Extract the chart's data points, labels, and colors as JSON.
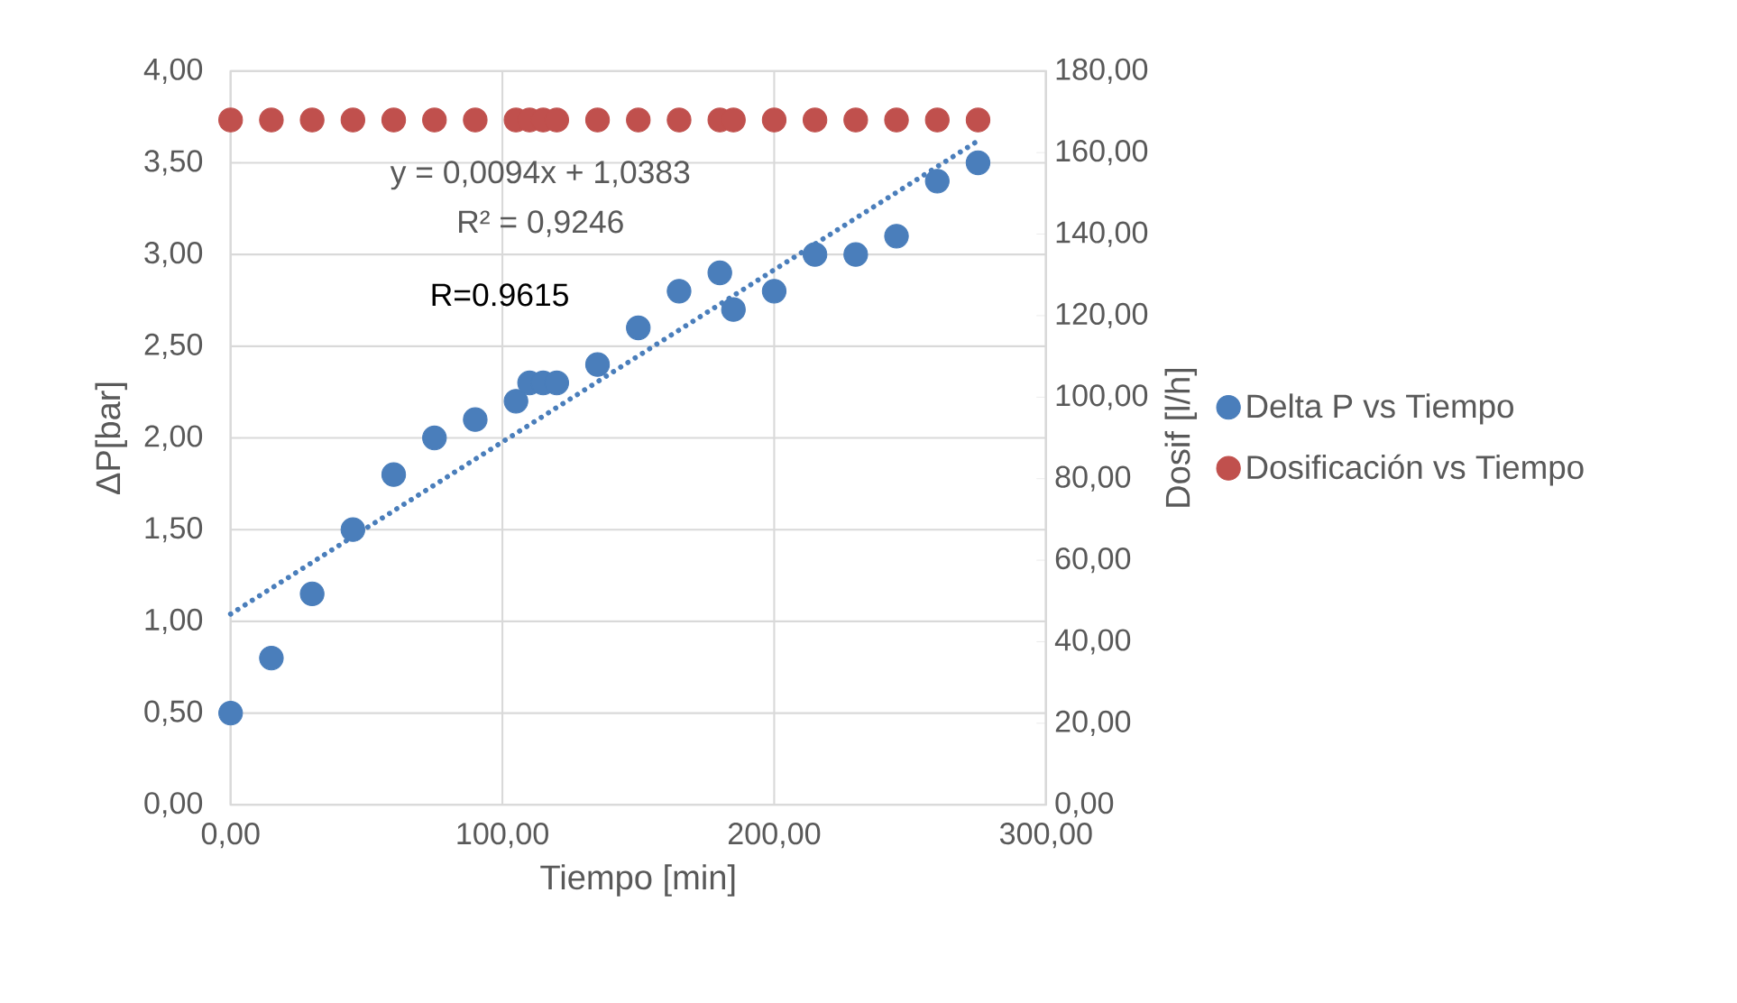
{
  "chart_data": {
    "type": "scatter",
    "xlabel": "Tiempo [min]",
    "ylabel": "ΔP[bar]",
    "y2label": "Dosif [l/h]",
    "annotations": [
      "y = 0,0094x + 1,0383",
      "R² = 0,9246",
      "R=0.9615"
    ],
    "xlim": [
      0,
      300
    ],
    "xticks": [
      {
        "value": 0,
        "label": "0,00"
      },
      {
        "value": 100,
        "label": "100,00"
      },
      {
        "value": 200,
        "label": "200,00"
      },
      {
        "value": 300,
        "label": "300,00"
      }
    ],
    "ylim": [
      0,
      4
    ],
    "yticks": [
      {
        "value": 0,
        "label": "0,00"
      },
      {
        "value": 0.5,
        "label": "0,50"
      },
      {
        "value": 1,
        "label": "1,00"
      },
      {
        "value": 1.5,
        "label": "1,50"
      },
      {
        "value": 2,
        "label": "2,00"
      },
      {
        "value": 2.5,
        "label": "2,50"
      },
      {
        "value": 3,
        "label": "3,00"
      },
      {
        "value": 3.5,
        "label": "3,50"
      },
      {
        "value": 4,
        "label": "4,00"
      }
    ],
    "y2lim": [
      0,
      180
    ],
    "y2ticks": [
      {
        "value": 0,
        "label": "0,00"
      },
      {
        "value": 20,
        "label": "20,00"
      },
      {
        "value": 40,
        "label": "40,00"
      },
      {
        "value": 60,
        "label": "60,00"
      },
      {
        "value": 80,
        "label": "80,00"
      },
      {
        "value": 100,
        "label": "100,00"
      },
      {
        "value": 120,
        "label": "120,00"
      },
      {
        "value": 140,
        "label": "140,00"
      },
      {
        "value": 160,
        "label": "160,00"
      },
      {
        "value": 180,
        "label": "180,00"
      }
    ],
    "grid": true,
    "legend": "right",
    "marker": "circle",
    "series": [
      {
        "name": "Delta P vs Tiempo",
        "type": "scatter",
        "color": "#4a7ebb",
        "x": [
          0,
          15,
          30,
          45,
          60,
          75,
          90,
          105,
          110,
          115,
          120,
          135,
          150,
          165,
          180,
          185,
          200,
          215,
          230,
          245,
          260,
          275
        ],
        "values": [
          0.5,
          0.8,
          1.15,
          1.5,
          1.8,
          2.0,
          2.1,
          2.2,
          2.3,
          2.3,
          2.3,
          2.4,
          2.6,
          2.8,
          2.9,
          2.7,
          2.8,
          3.0,
          3.0,
          3.1,
          3.4,
          3.5
        ]
      },
      {
        "name": "Dosificación vs Tiempo",
        "type": "scatter",
        "axis": "y2",
        "color": "#c0504d",
        "x": [
          0,
          15,
          30,
          45,
          60,
          75,
          90,
          105,
          110,
          115,
          120,
          135,
          150,
          165,
          180,
          185,
          200,
          215,
          230,
          245,
          260,
          275
        ],
        "values": [
          168,
          168,
          168,
          168,
          168,
          168,
          168,
          168,
          168,
          168,
          168,
          168,
          168,
          168,
          168,
          168,
          168,
          168,
          168,
          168,
          168,
          168
        ]
      },
      {
        "type": "line",
        "color": "#4a7ebb",
        "line_style": "dotted",
        "marker": "none",
        "x": [
          0,
          275
        ],
        "values": [
          1.04,
          3.62
        ]
      }
    ]
  }
}
